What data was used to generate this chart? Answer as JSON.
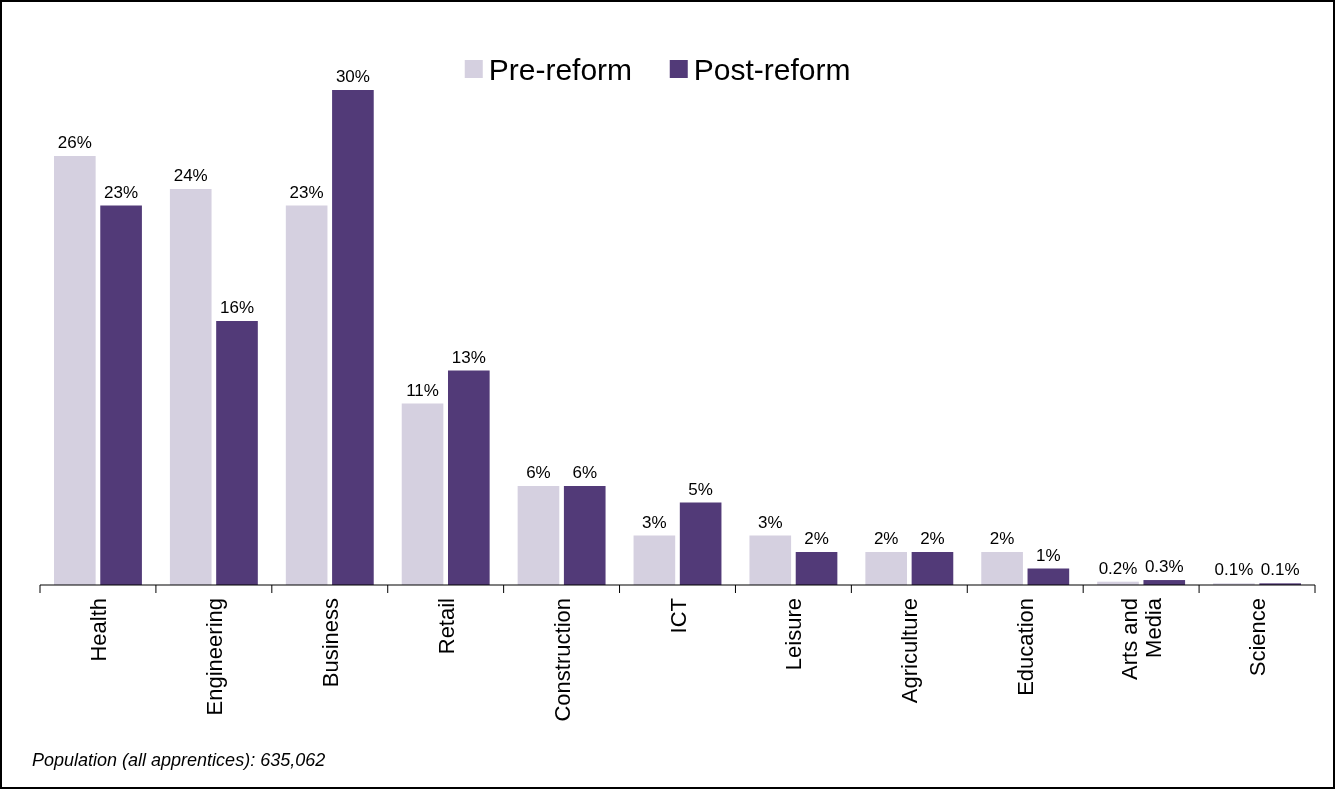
{
  "chart_data": {
    "type": "bar",
    "categories": [
      "Health",
      "Engineering",
      "Business",
      "Retail",
      "Construction",
      "ICT",
      "Leisure",
      "Agriculture",
      "Education",
      "Arts and Media",
      "Science"
    ],
    "series": [
      {
        "name": "Pre-reform",
        "color": "#d5d0e0",
        "values": [
          26,
          24,
          23,
          11,
          6,
          3,
          3,
          2,
          2,
          0.2,
          0.1
        ],
        "value_labels": [
          "26%",
          "24%",
          "23%",
          "11%",
          "6%",
          "3%",
          "3%",
          "2%",
          "2%",
          "0.2%",
          "0.1%"
        ]
      },
      {
        "name": "Post-reform",
        "color": "#523a78",
        "values": [
          23,
          16,
          30,
          13,
          6,
          5,
          2,
          2,
          1,
          0.3,
          0.1
        ],
        "value_labels": [
          "23%",
          "16%",
          "30%",
          "13%",
          "6%",
          "5%",
          "2%",
          "2%",
          "1%",
          "0.3%",
          "0.1%"
        ]
      }
    ],
    "legend": "top",
    "annotations": [
      "Population (all apprentices): 635,062"
    ]
  }
}
